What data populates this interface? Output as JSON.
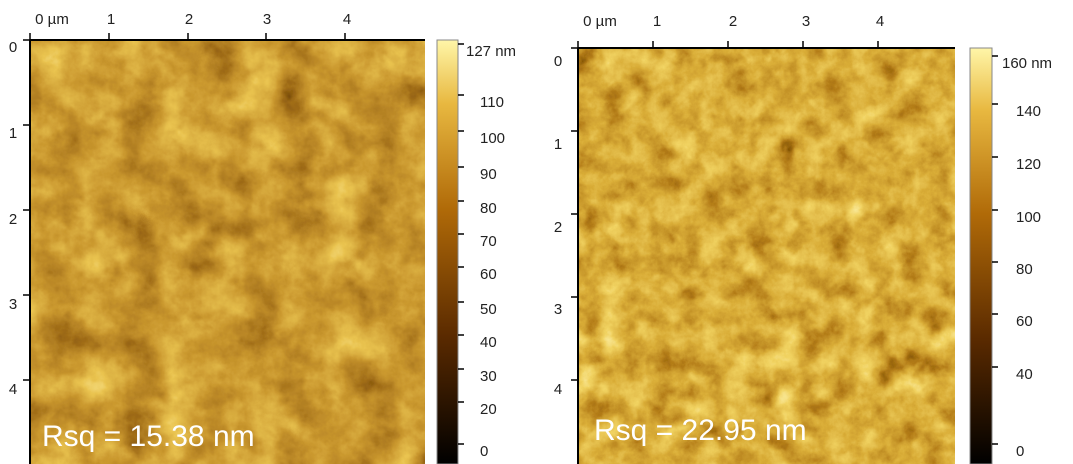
{
  "panels": [
    {
      "x_ticks": [
        "0 µm",
        "1",
        "2",
        "3",
        "4"
      ],
      "y_ticks": [
        "0",
        "1",
        "2",
        "3",
        "4"
      ],
      "colorbar_labels": [
        "127 nm",
        "110",
        "100",
        "90",
        "80",
        "70",
        "60",
        "50",
        "40",
        "30",
        "20",
        "0"
      ],
      "annotation": "Rsq = 15.38 nm"
    },
    {
      "x_ticks": [
        "0 µm",
        "1",
        "2",
        "3",
        "4"
      ],
      "y_ticks": [
        "0",
        "1",
        "2",
        "3",
        "4"
      ],
      "colorbar_labels": [
        "160 nm",
        "140",
        "120",
        "100",
        "80",
        "60",
        "40",
        "0"
      ],
      "annotation": "Rsq = 22.95 nm"
    }
  ]
}
